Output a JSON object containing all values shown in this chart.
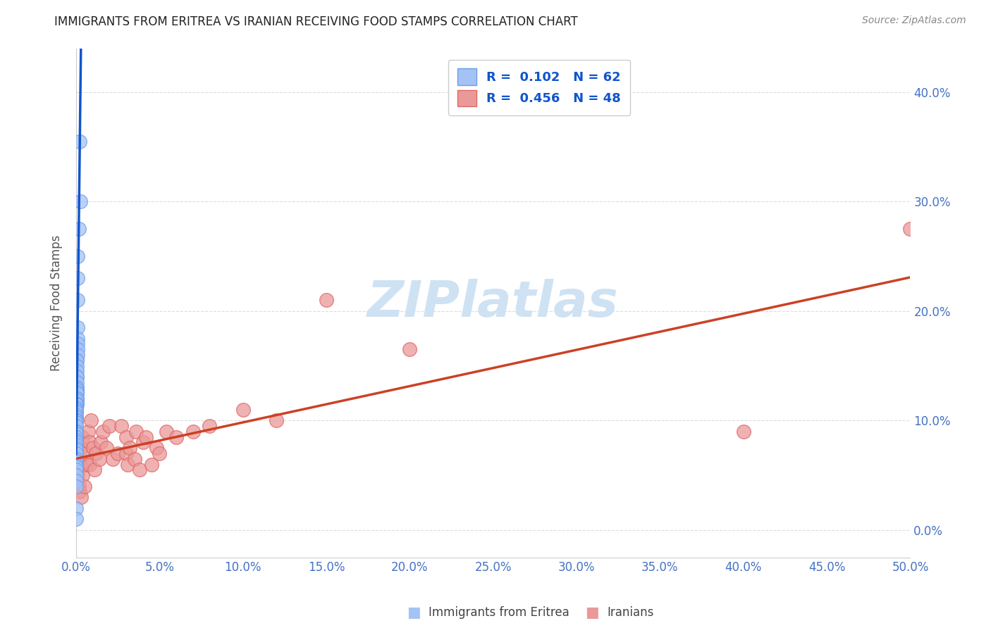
{
  "title": "IMMIGRANTS FROM ERITREA VS IRANIAN RECEIVING FOOD STAMPS CORRELATION CHART",
  "source": "Source: ZipAtlas.com",
  "ylabel": "Receiving Food Stamps",
  "xlim": [
    0.0,
    0.5
  ],
  "ylim": [
    -0.025,
    0.44
  ],
  "blue_fill": "#a4c2f4",
  "blue_edge": "#6d9eeb",
  "pink_fill": "#ea9999",
  "pink_edge": "#e06666",
  "blue_line_color": "#1155cc",
  "pink_line_color": "#cc4125",
  "dashed_line_color": "#6d9eeb",
  "title_color": "#222222",
  "axis_label_color": "#4472c4",
  "watermark_color": "#cfe2f3",
  "legend_text_color": "#1155cc",
  "grid_color": "#dddddd",
  "background_color": "#ffffff",
  "legend1_text": "R =  0.102   N = 62",
  "legend2_text": "R =  0.456   N = 48",
  "legend1_label": "Immigrants from Eritrea",
  "legend2_label": "Iranians",
  "eritrea_x": [
    0.002,
    0.0025,
    0.0015,
    0.001,
    0.001,
    0.001,
    0.0008,
    0.0008,
    0.0008,
    0.0007,
    0.0007,
    0.0006,
    0.0006,
    0.0006,
    0.0006,
    0.0005,
    0.0005,
    0.0005,
    0.0005,
    0.0004,
    0.0004,
    0.0004,
    0.0004,
    0.0004,
    0.0003,
    0.0003,
    0.0003,
    0.0003,
    0.0003,
    0.0003,
    0.0002,
    0.0002,
    0.0002,
    0.0002,
    0.0002,
    0.0002,
    0.0002,
    0.0002,
    0.0001,
    0.0001,
    0.0001,
    0.0001,
    0.0001,
    0.0001,
    0.0001,
    0.0001,
    0.0001,
    0.0001,
    0.0001,
    0.0001,
    0.0001,
    0.0001,
    0.0001,
    0.0001,
    0.0001,
    0.0001,
    0.0001,
    0.0001,
    0.0001,
    0.0001,
    0.0001,
    0.0001
  ],
  "eritrea_y": [
    0.355,
    0.3,
    0.275,
    0.25,
    0.23,
    0.21,
    0.185,
    0.175,
    0.17,
    0.165,
    0.16,
    0.155,
    0.155,
    0.15,
    0.145,
    0.14,
    0.14,
    0.135,
    0.13,
    0.13,
    0.13,
    0.128,
    0.125,
    0.125,
    0.125,
    0.12,
    0.12,
    0.118,
    0.115,
    0.115,
    0.115,
    0.112,
    0.11,
    0.11,
    0.108,
    0.105,
    0.103,
    0.1,
    0.1,
    0.1,
    0.098,
    0.095,
    0.09,
    0.09,
    0.088,
    0.085,
    0.082,
    0.08,
    0.078,
    0.075,
    0.073,
    0.07,
    0.065,
    0.063,
    0.06,
    0.058,
    0.055,
    0.05,
    0.045,
    0.04,
    0.02,
    0.01
  ],
  "iranian_x": [
    0.001,
    0.0015,
    0.002,
    0.0025,
    0.003,
    0.003,
    0.004,
    0.004,
    0.005,
    0.006,
    0.006,
    0.007,
    0.008,
    0.008,
    0.009,
    0.01,
    0.011,
    0.012,
    0.014,
    0.015,
    0.016,
    0.018,
    0.02,
    0.022,
    0.025,
    0.027,
    0.03,
    0.03,
    0.031,
    0.032,
    0.035,
    0.036,
    0.038,
    0.04,
    0.042,
    0.045,
    0.048,
    0.05,
    0.054,
    0.06,
    0.07,
    0.08,
    0.1,
    0.12,
    0.15,
    0.2,
    0.4,
    0.5
  ],
  "iranian_y": [
    0.05,
    0.04,
    0.035,
    0.06,
    0.03,
    0.075,
    0.085,
    0.05,
    0.04,
    0.07,
    0.06,
    0.09,
    0.06,
    0.08,
    0.1,
    0.075,
    0.055,
    0.07,
    0.065,
    0.08,
    0.09,
    0.075,
    0.095,
    0.065,
    0.07,
    0.095,
    0.07,
    0.085,
    0.06,
    0.075,
    0.065,
    0.09,
    0.055,
    0.08,
    0.085,
    0.06,
    0.075,
    0.07,
    0.09,
    0.085,
    0.09,
    0.095,
    0.11,
    0.1,
    0.21,
    0.165,
    0.09,
    0.275
  ]
}
